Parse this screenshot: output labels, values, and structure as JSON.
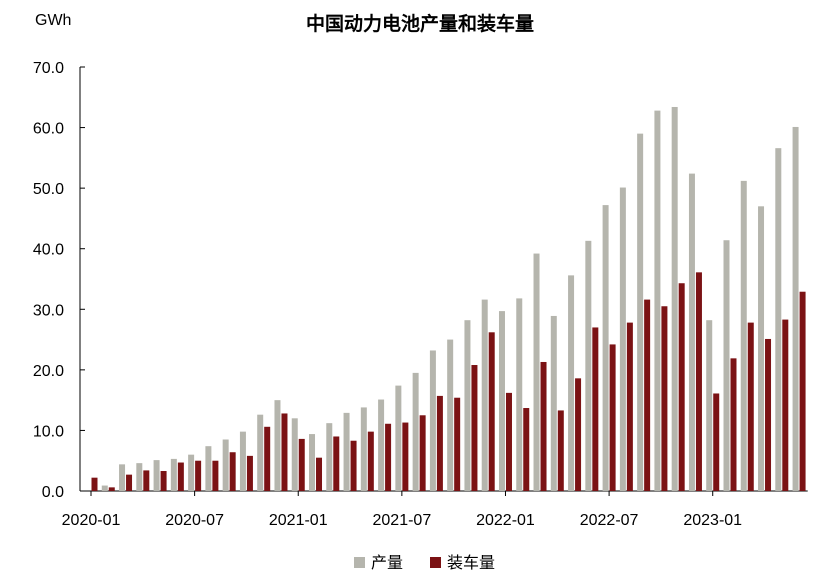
{
  "chart_data": {
    "type": "bar",
    "title": "中国动力电池产量和装车量",
    "unit": "GWh",
    "ylim": [
      0,
      70
    ],
    "y_ticks": [
      "0.0",
      "10.0",
      "20.0",
      "30.0",
      "40.0",
      "50.0",
      "60.0",
      "70.0"
    ],
    "x_tick_labels": [
      "2020-01",
      "2020-07",
      "2021-01",
      "2021-07",
      "2022-01",
      "2022-07",
      "2023-01"
    ],
    "categories": [
      "2020-01",
      "2020-02",
      "2020-03",
      "2020-04",
      "2020-05",
      "2020-06",
      "2020-07",
      "2020-08",
      "2020-09",
      "2020-10",
      "2020-11",
      "2020-12",
      "2021-01",
      "2021-02",
      "2021-03",
      "2021-04",
      "2021-05",
      "2021-06",
      "2021-07",
      "2021-08",
      "2021-09",
      "2021-10",
      "2021-11",
      "2021-12",
      "2022-01",
      "2022-02",
      "2022-03",
      "2022-04",
      "2022-05",
      "2022-06",
      "2022-07",
      "2022-08",
      "2022-09",
      "2022-10",
      "2022-11",
      "2022-12",
      "2023-01",
      "2023-02",
      "2023-03",
      "2023-04",
      "2023-05",
      "2023-06"
    ],
    "series": [
      {
        "name": "产量",
        "color": "#b5b5ad",
        "values": [
          0.0,
          0.9,
          4.4,
          4.6,
          5.1,
          5.3,
          6.0,
          7.4,
          8.5,
          9.8,
          12.6,
          15.0,
          12.0,
          9.4,
          11.2,
          12.9,
          13.8,
          15.1,
          17.4,
          19.5,
          23.2,
          25.0,
          28.2,
          31.6,
          29.7,
          31.8,
          39.2,
          28.9,
          35.6,
          41.3,
          47.2,
          50.1,
          59.0,
          62.8,
          63.4,
          52.4,
          28.2,
          41.4,
          51.2,
          47.0,
          56.6,
          60.1
        ]
      },
      {
        "name": "装车量",
        "color": "#7b1214",
        "values": [
          2.2,
          0.6,
          2.7,
          3.4,
          3.3,
          4.7,
          5.0,
          5.0,
          6.4,
          5.8,
          10.6,
          12.8,
          8.6,
          5.5,
          9.0,
          8.3,
          9.8,
          11.1,
          11.3,
          12.5,
          15.7,
          15.4,
          20.8,
          26.2,
          16.2,
          13.7,
          21.3,
          13.3,
          18.6,
          27.0,
          24.2,
          27.8,
          31.6,
          30.5,
          34.3,
          36.1,
          16.1,
          21.9,
          27.8,
          25.1,
          28.3,
          32.9
        ]
      }
    ],
    "legend_position": "bottom",
    "grid": false
  }
}
